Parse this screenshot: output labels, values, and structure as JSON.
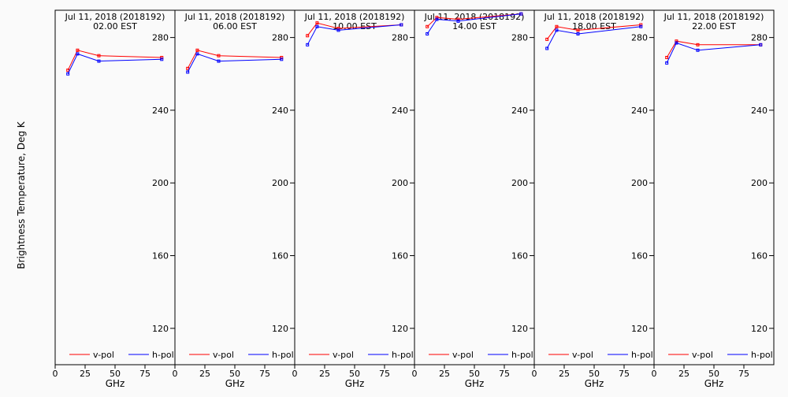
{
  "ylabel": "Brightness Temperature, Deg K",
  "xlabel": "GHz",
  "chart_data": [
    {
      "type": "line",
      "title": "Jul 11, 2018 (2018192)",
      "subtitle": "02.00 EST",
      "xlabel": "GHz",
      "ylabel": "Brightness Temperature, Deg K",
      "xlim": [
        0,
        100
      ],
      "ylim": [
        100,
        295
      ],
      "xticks": [
        0,
        25,
        50,
        75
      ],
      "yticks": [
        120,
        160,
        200,
        240,
        280
      ],
      "x": [
        10.65,
        18.7,
        36.5,
        89
      ],
      "series": [
        {
          "name": "v-pol",
          "color": "#ff0000",
          "values": [
            262,
            273,
            270,
            269
          ]
        },
        {
          "name": "h-pol",
          "color": "#0000ff",
          "values": [
            260,
            271,
            267,
            268
          ]
        }
      ],
      "legend": "bottom"
    },
    {
      "type": "line",
      "title": "Jul 11, 2018 (2018192)",
      "subtitle": "06.00 EST",
      "xlabel": "GHz",
      "ylabel": "",
      "xlim": [
        0,
        100
      ],
      "ylim": [
        100,
        295
      ],
      "xticks": [
        0,
        25,
        50,
        75
      ],
      "yticks": [
        120,
        160,
        200,
        240,
        280
      ],
      "x": [
        10.65,
        18.7,
        36.5,
        89
      ],
      "series": [
        {
          "name": "v-pol",
          "color": "#ff0000",
          "values": [
            263,
            273,
            270,
            269
          ]
        },
        {
          "name": "h-pol",
          "color": "#0000ff",
          "values": [
            261,
            271,
            267,
            268
          ]
        }
      ],
      "legend": "bottom"
    },
    {
      "type": "line",
      "title": "Jul 11, 2018 (2018192)",
      "subtitle": "10.00 EST",
      "xlabel": "GHz",
      "ylabel": "",
      "xlim": [
        0,
        100
      ],
      "ylim": [
        100,
        295
      ],
      "xticks": [
        0,
        25,
        50,
        75
      ],
      "yticks": [
        120,
        160,
        200,
        240,
        280
      ],
      "x": [
        10.65,
        18.7,
        36.5,
        89
      ],
      "series": [
        {
          "name": "v-pol",
          "color": "#ff0000",
          "values": [
            281,
            288,
            285,
            287
          ]
        },
        {
          "name": "h-pol",
          "color": "#0000ff",
          "values": [
            276,
            286,
            284,
            287
          ]
        }
      ],
      "legend": "bottom"
    },
    {
      "type": "line",
      "title": "Jul 11, 2018 (2018192)",
      "subtitle": "14.00 EST",
      "xlabel": "GHz",
      "ylabel": "",
      "xlim": [
        0,
        100
      ],
      "ylim": [
        100,
        295
      ],
      "xticks": [
        0,
        25,
        50,
        75
      ],
      "yticks": [
        120,
        160,
        200,
        240,
        280
      ],
      "x": [
        10.65,
        18.7,
        36.5,
        89
      ],
      "series": [
        {
          "name": "v-pol",
          "color": "#ff0000",
          "values": [
            286,
            291,
            290,
            293
          ]
        },
        {
          "name": "h-pol",
          "color": "#0000ff",
          "values": [
            282,
            290,
            289,
            293
          ]
        }
      ],
      "legend": "bottom"
    },
    {
      "type": "line",
      "title": "Jul 11, 2018 (2018192)",
      "subtitle": "18.00 EST",
      "xlabel": "GHz",
      "ylabel": "",
      "xlim": [
        0,
        100
      ],
      "ylim": [
        100,
        295
      ],
      "xticks": [
        0,
        25,
        50,
        75
      ],
      "yticks": [
        120,
        160,
        200,
        240,
        280
      ],
      "x": [
        10.65,
        18.7,
        36.5,
        89
      ],
      "series": [
        {
          "name": "v-pol",
          "color": "#ff0000",
          "values": [
            279,
            286,
            284,
            287
          ]
        },
        {
          "name": "h-pol",
          "color": "#0000ff",
          "values": [
            274,
            284,
            282,
            286
          ]
        }
      ],
      "legend": "bottom"
    },
    {
      "type": "line",
      "title": "Jul 11, 2018 (2018192)",
      "subtitle": "22.00 EST",
      "xlabel": "GHz",
      "ylabel": "",
      "xlim": [
        0,
        100
      ],
      "ylim": [
        100,
        295
      ],
      "xticks": [
        0,
        25,
        50,
        75
      ],
      "yticks": [
        120,
        160,
        200,
        240,
        280
      ],
      "x": [
        10.65,
        18.7,
        36.5,
        89
      ],
      "series": [
        {
          "name": "v-pol",
          "color": "#ff0000",
          "values": [
            269,
            278,
            276,
            276
          ]
        },
        {
          "name": "h-pol",
          "color": "#0000ff",
          "values": [
            266,
            277,
            273,
            276
          ]
        }
      ],
      "legend": "bottom"
    }
  ]
}
